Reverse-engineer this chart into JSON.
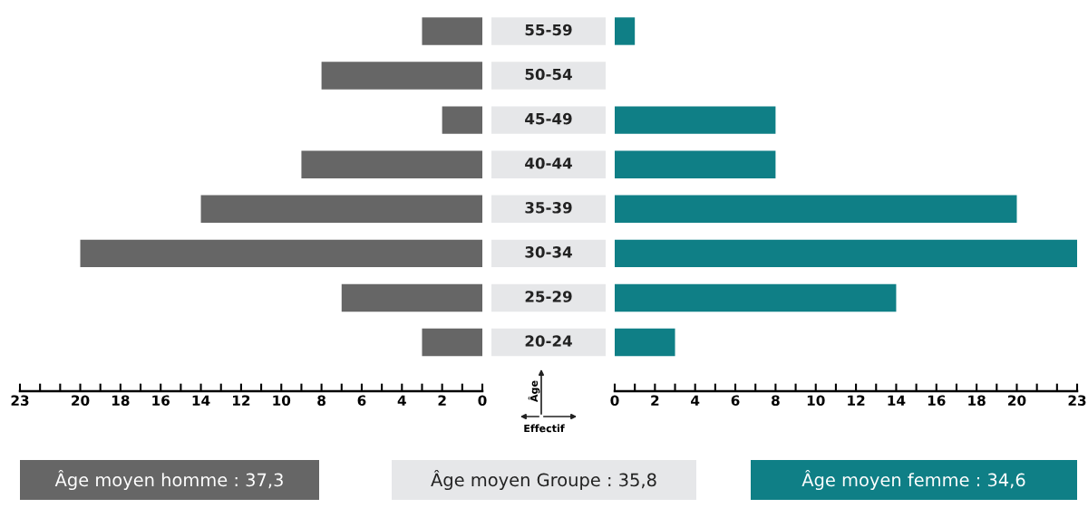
{
  "chart_data": [
    {
      "type": "bar",
      "orientation": "horizontal",
      "categories": [
        "55-59",
        "50-54",
        "45-49",
        "40-44",
        "35-39",
        "30-34",
        "25-29",
        "20-24"
      ],
      "series": [
        {
          "color": "#666666",
          "values": [
            3,
            8,
            2,
            9,
            14,
            20,
            7,
            3
          ]
        }
      ],
      "xlim": [
        23,
        0
      ],
      "xticks": [
        23,
        {
          "value": 22,
          "label": null
        },
        {
          "value": 21,
          "label": null
        },
        20,
        {
          "value": 19,
          "label": null
        },
        18,
        {
          "value": 17,
          "label": null
        },
        16,
        {
          "value": 15,
          "label": null
        },
        14,
        {
          "value": 13,
          "label": null
        },
        12,
        {
          "value": 11,
          "label": null
        },
        10,
        {
          "value": 9,
          "label": null
        },
        8,
        {
          "value": 7,
          "label": null
        },
        6,
        {
          "value": 5,
          "label": null
        },
        4,
        {
          "value": 3,
          "label": null
        },
        2,
        {
          "value": 1,
          "label": null
        },
        0
      ],
      "annotations": [
        "Âge moyen homme : 37,3",
        "Âge moyen Groupe : 35,8"
      ]
    },
    {
      "type": "bar",
      "orientation": "horizontal",
      "categories": [
        null,
        null,
        null,
        null,
        null,
        null,
        null,
        null
      ],
      "xlabel": "Effectif",
      "ylabel": "Âge",
      "series": [
        {
          "color": "#0f7f86",
          "values": [
            1,
            0,
            8,
            8,
            20,
            23,
            14,
            3
          ]
        }
      ],
      "xlim": [
        0,
        23
      ],
      "xticks": [
        0,
        {
          "value": 1,
          "label": null
        },
        2,
        {
          "value": 3,
          "label": null
        },
        4,
        {
          "value": 5,
          "label": null
        },
        6,
        {
          "value": 7,
          "label": null
        },
        8,
        {
          "value": 9,
          "label": null
        },
        10,
        {
          "value": 11,
          "label": null
        },
        12,
        {
          "value": 13,
          "label": null
        },
        14,
        {
          "value": 15,
          "label": null
        },
        16,
        {
          "value": 17,
          "label": null
        },
        18,
        {
          "value": 19,
          "label": null
        },
        20,
        {
          "value": 21,
          "label": null
        },
        {
          "value": 22,
          "label": null
        },
        23
      ],
      "annotations": [
        "Âge moyen femme : 34,6"
      ]
    }
  ]
}
